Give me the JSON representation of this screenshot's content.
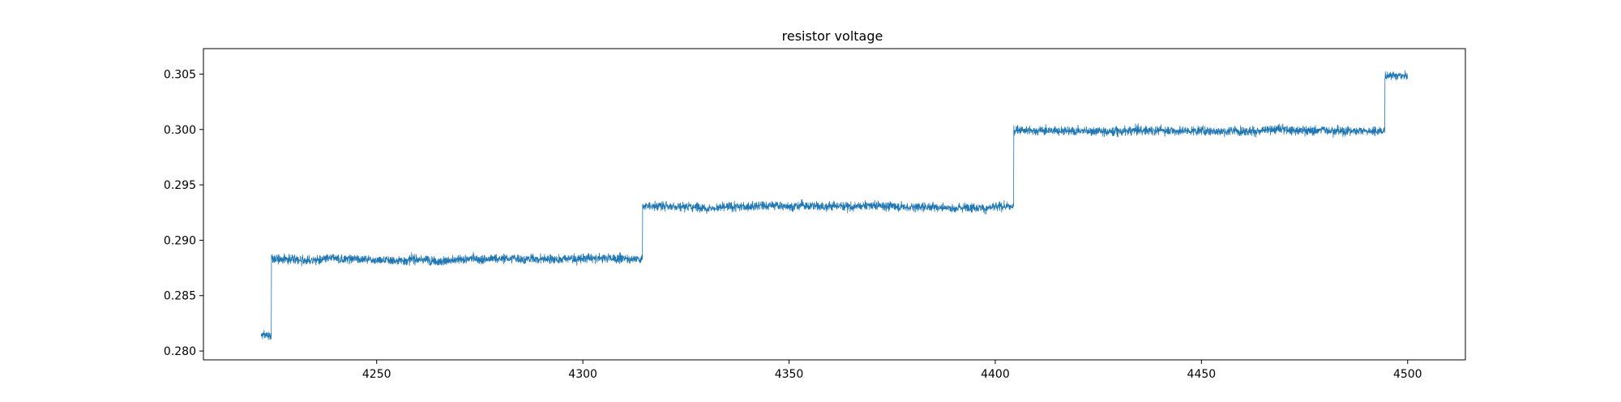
{
  "chart_data": {
    "type": "line",
    "title": "resistor voltage",
    "xlabel": "",
    "ylabel": "",
    "xlim": [
      4208,
      4514
    ],
    "ylim": [
      0.2792,
      0.3073
    ],
    "xticks": [
      4250,
      4300,
      4350,
      4400,
      4450,
      4500
    ],
    "xtick_labels": [
      "4250",
      "4300",
      "4350",
      "4400",
      "4450",
      "4500"
    ],
    "yticks": [
      0.28,
      0.285,
      0.29,
      0.295,
      0.3,
      0.305
    ],
    "ytick_labels": [
      "0.280",
      "0.285",
      "0.290",
      "0.295",
      "0.300",
      "0.305"
    ],
    "grid": false,
    "line_color": "#1f77b4",
    "series": [
      {
        "name": "",
        "segments": [
          {
            "x_start": 4222,
            "x_end": 4224.5,
            "level": 0.2814,
            "noise_amplitude": 0.0007
          },
          {
            "x_start": 4224.5,
            "x_end": 4314.5,
            "level": 0.2883,
            "noise_amplitude": 0.0007
          },
          {
            "x_start": 4314.5,
            "x_end": 4404.5,
            "level": 0.2931,
            "noise_amplitude": 0.0007
          },
          {
            "x_start": 4404.5,
            "x_end": 4494.5,
            "level": 0.3,
            "noise_amplitude": 0.0007
          },
          {
            "x_start": 4494.5,
            "x_end": 4500,
            "level": 0.3048,
            "noise_amplitude": 0.0006
          }
        ]
      }
    ]
  }
}
